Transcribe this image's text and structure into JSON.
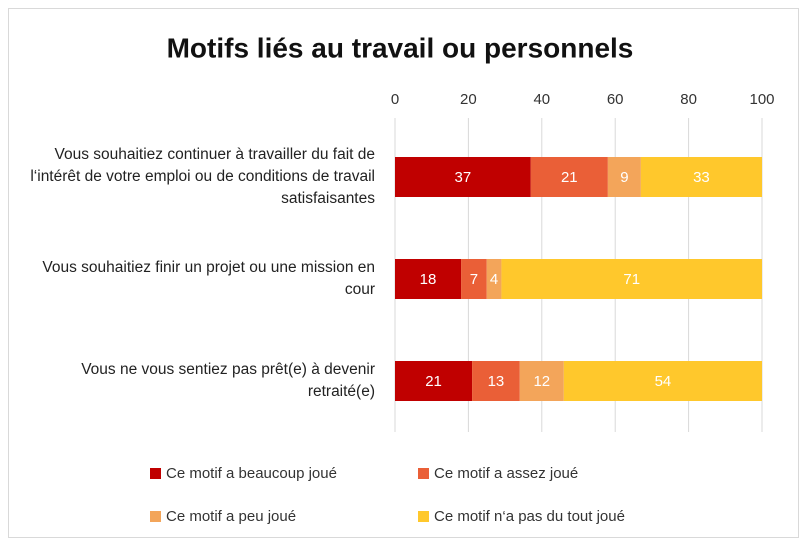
{
  "chart_data": {
    "type": "bar",
    "orientation": "horizontal",
    "stacked": true,
    "title": "Motifs liés au travail ou personnels",
    "categories": [
      "Vous souhaitiez continuer à travailler du fait de l‘intérêt de votre emploi ou de conditions de travail satisfaisantes",
      "Vous souhaitiez finir un projet ou une mission en cour",
      "Vous ne vous sentiez pas prêt(e) à devenir retraité(e)"
    ],
    "series": [
      {
        "name": "Ce motif a beaucoup joué",
        "color": "#c00000",
        "values": [
          37,
          18,
          21
        ]
      },
      {
        "name": "Ce motif a assez joué",
        "color": "#ea5f37",
        "values": [
          21,
          7,
          13
        ]
      },
      {
        "name": "Ce motif a peu joué",
        "color": "#f3a55a",
        "values": [
          9,
          4,
          12
        ]
      },
      {
        "name": "Ce motif n‘a pas du tout joué",
        "color": "#ffc82c",
        "values": [
          33,
          71,
          54
        ]
      }
    ],
    "xlim": [
      0,
      100
    ],
    "xticks": [
      0,
      20,
      40,
      60,
      80,
      100
    ],
    "grid": true,
    "legend": "bottom"
  }
}
